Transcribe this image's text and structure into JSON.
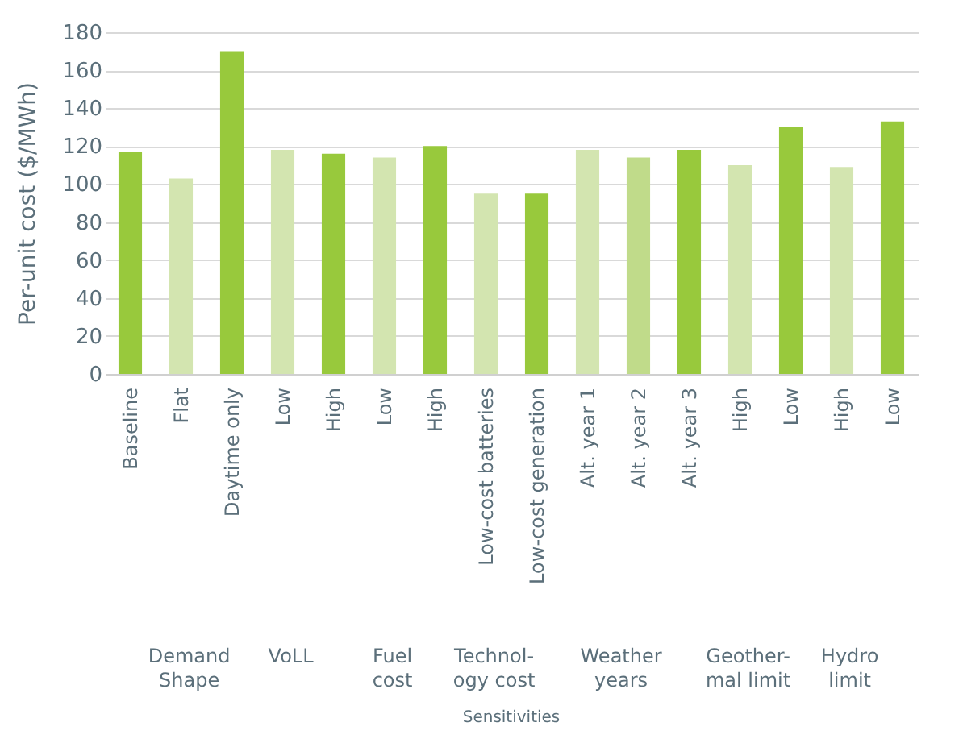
{
  "chart_data": {
    "type": "bar",
    "ylabel": "Per-unit cost ($/MWh)",
    "categories": [
      "Baseline",
      "Flat",
      "Daytime only",
      "Low",
      "High",
      "Low",
      "High",
      "Low-cost batteries",
      "Low-cost generation",
      "Alt. year 1",
      "Alt. year 2",
      "Alt. year 3",
      "High",
      "Low",
      "High",
      "Low"
    ],
    "values": [
      117,
      103,
      170,
      118,
      116,
      114,
      120,
      95,
      95,
      118,
      114,
      118,
      110,
      130,
      109,
      133
    ],
    "colors": [
      "#98c93c",
      "#d3e5b0",
      "#98c93c",
      "#d3e5b0",
      "#98c93c",
      "#d3e5b0",
      "#98c93c",
      "#d3e5b0",
      "#98c93c",
      "#d3e5b0",
      "#c0db8a",
      "#98c93c",
      "#d3e5b0",
      "#98c93c",
      "#d3e5b0",
      "#98c93c"
    ],
    "ylim": [
      0,
      180
    ],
    "yticks": [
      0,
      20,
      40,
      60,
      80,
      100,
      120,
      140,
      160,
      180
    ],
    "grid": "y",
    "annotations": [
      "Demand\nShape",
      "VoLL",
      "Fuel\ncost",
      "Technol-\nogy cost",
      "Weather\nyears",
      "Geother-\nmal limit",
      "Hydro\nlimit",
      "Sensitivities"
    ]
  }
}
